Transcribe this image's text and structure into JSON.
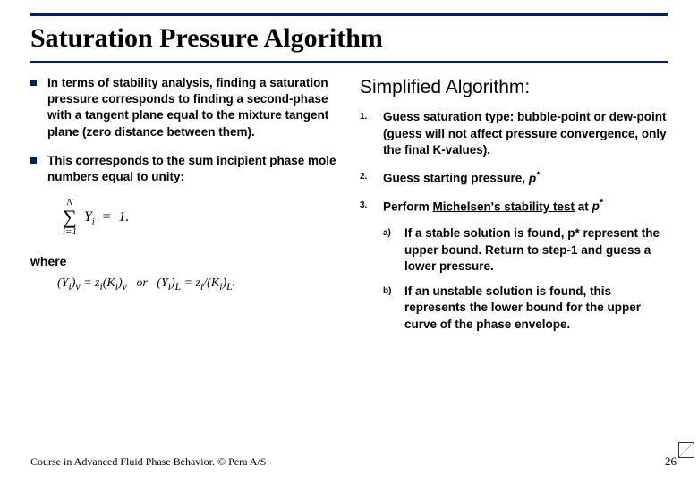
{
  "title": "Saturation Pressure Algorithm",
  "left": {
    "b1": "In terms of stability analysis, finding a saturation pressure corresponds to finding a second-phase with a tangent plane equal to the mixture tangent plane (zero distance between them).",
    "b2": "This corresponds to the sum incipient phase mole numbers equal to unity:",
    "where": "where"
  },
  "right": {
    "heading": "Simplified Algorithm:",
    "n1": "Guess saturation type: bubble-point or dew-point (guess will not affect pressure convergence, only the final K-values).",
    "n2a": "Guess starting pressure, ",
    "n2b": "p",
    "n3a": "Perform ",
    "n3link": "Michelsen's stability test",
    "n3b": " at ",
    "n3c": "p",
    "sa": "If a stable solution is found, p* represent the upper bound. Return to step-1 and guess a lower pressure.",
    "sb": "If an unstable solution is found, this represents the lower bound for the upper curve of the phase envelope."
  },
  "footer": "Course in Advanced Fluid Phase Behavior. © Pera A/S",
  "page": "26"
}
